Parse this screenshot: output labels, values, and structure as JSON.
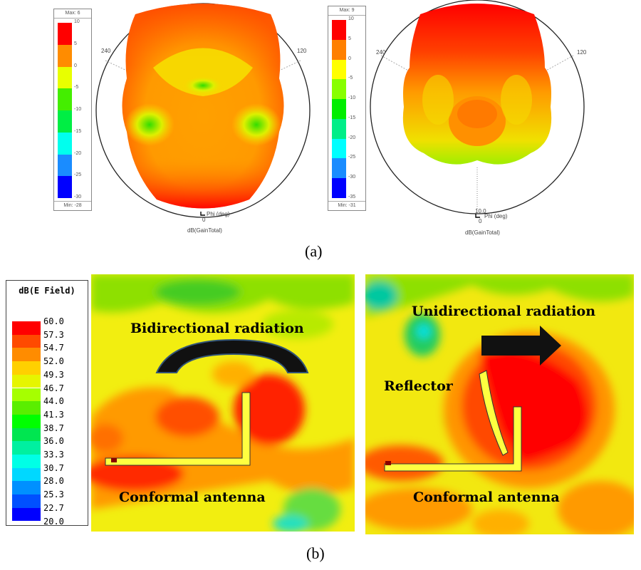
{
  "panel_a": {
    "caption": "(a)",
    "left": {
      "legend": {
        "max_label": "Max: 6",
        "min_label": "Min: -28",
        "ticks": [
          "10",
          "5",
          "0",
          "-5",
          "-10",
          "-15",
          "-20",
          "-25",
          "-30"
        ],
        "colors": [
          "#ff0000",
          "#ff8c00",
          "#e8ff00",
          "#44ee00",
          "#00ee44",
          "#00ffee",
          "#1a8cff",
          "#0000ff"
        ]
      },
      "angle_left": "240",
      "angle_right": "120",
      "phi_label": "Phi (deg)",
      "phi_zero": "0",
      "quantity": "dB(GainTotal)"
    },
    "right": {
      "legend": {
        "max_label": "Max: 9",
        "min_label": "Min: -31",
        "ticks": [
          "10",
          "5",
          "0",
          "-5",
          "-10",
          "-15",
          "-20",
          "-25",
          "-30",
          "-35"
        ],
        "colors": [
          "#ff0000",
          "#ff8000",
          "#ffff00",
          "#88ff00",
          "#00ee00",
          "#00ee88",
          "#00ffff",
          "#1a8cff",
          "#0000ff"
        ]
      },
      "angle_left": "240",
      "angle_right": "120",
      "phi_label": "Phi (deg)",
      "phi_zero": "0",
      "phi_marker": "10.0",
      "quantity": "dB(GainTotal)"
    }
  },
  "panel_b": {
    "caption": "(b)",
    "legend": {
      "title": "dB(E Field)",
      "ticks": [
        "60.0",
        "57.3",
        "54.7",
        "52.0",
        "49.3",
        "46.7",
        "44.0",
        "41.3",
        "38.7",
        "36.0",
        "33.3",
        "30.7",
        "28.0",
        "25.3",
        "22.7",
        "20.0"
      ],
      "colors": [
        "#ff0000",
        "#ff4a00",
        "#ff8c00",
        "#ffd000",
        "#e6f500",
        "#a6ff00",
        "#5aee00",
        "#00ff00",
        "#00e650",
        "#00f0a0",
        "#00ffe6",
        "#00d8ff",
        "#0090ff",
        "#0050ff",
        "#0000ff"
      ]
    },
    "left": {
      "title": "Bidirectional radiation",
      "antenna_label": "Conformal antenna"
    },
    "right": {
      "title": "Unidirectional radiation",
      "reflector_label": "Reflector",
      "antenna_label": "Conformal antenna"
    }
  }
}
